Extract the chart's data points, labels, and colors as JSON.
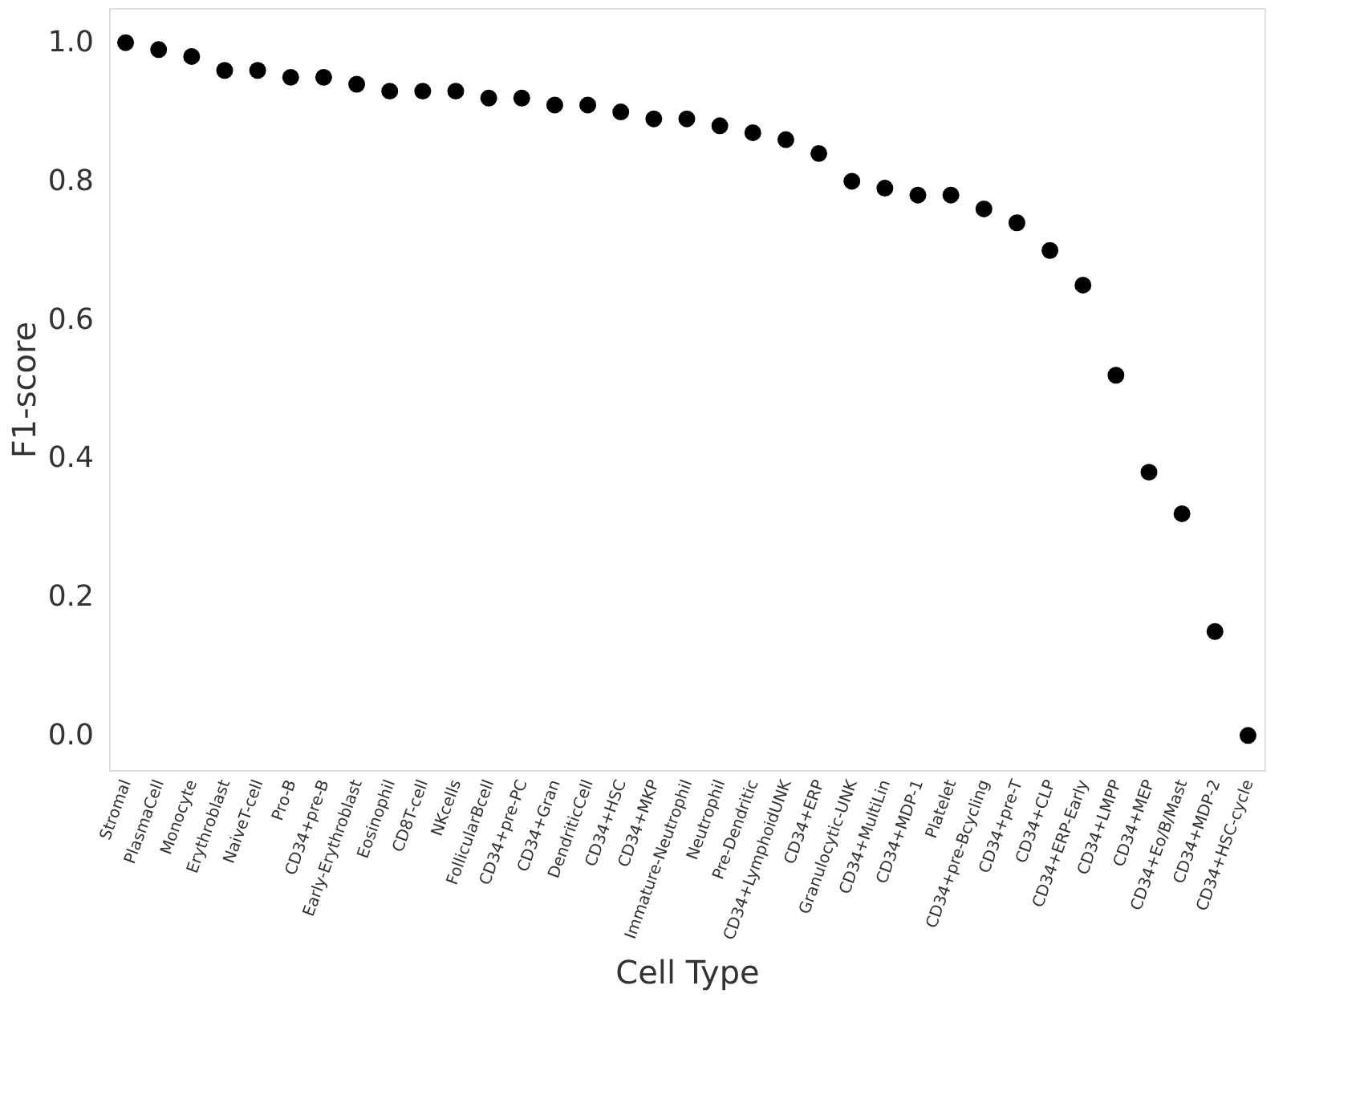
{
  "chart_data": {
    "type": "scatter",
    "xlabel": "Cell Type",
    "ylabel": "F1-score",
    "categories": [
      "Stromal",
      "PlasmaCell",
      "Monocyte",
      "Erythroblast",
      "NaiveT-cell",
      "Pro-B",
      "CD34+pre-B",
      "Early-Erythroblast",
      "Eosinophil",
      "CD8T-cell",
      "NKcells",
      "FollicularBcell",
      "CD34+pre-PC",
      "CD34+Gran",
      "DendriticCell",
      "CD34+HSC",
      "CD34+MKP",
      "Immature-Neutrophil",
      "Neutrophil",
      "Pre-Dendritic",
      "CD34+LymphoidUNK",
      "CD34+ERP",
      "Granulocytic-UNK",
      "CD34+MultiLin",
      "CD34+MDP-1",
      "Platelet",
      "CD34+pre-Bcycling",
      "CD34+pre-T",
      "CD34+CLP",
      "CD34+ERP-Early",
      "CD34+LMPP",
      "CD34+MEP",
      "CD34+Eo/B/Mast",
      "CD34+MDP-2",
      "CD34+HSC-cycle"
    ],
    "series": [
      {
        "color": "#000000",
        "values": [
          1.0,
          0.99,
          0.98,
          0.96,
          0.96,
          0.95,
          0.95,
          0.94,
          0.93,
          0.93,
          0.93,
          0.92,
          0.92,
          0.91,
          0.91,
          0.9,
          0.89,
          0.89,
          0.88,
          0.87,
          0.86,
          0.84,
          0.8,
          0.79,
          0.78,
          0.78,
          0.76,
          0.74,
          0.7,
          0.65,
          0.52,
          0.38,
          0.32,
          0.15,
          0.0
        ]
      }
    ],
    "ylim": [
      -0.05,
      1.05
    ],
    "yticks": [
      {
        "value": 0.0,
        "label": "0.0"
      },
      {
        "value": 0.2,
        "label": "0.2"
      },
      {
        "value": 0.4,
        "label": "0.4"
      },
      {
        "value": 0.6,
        "label": "0.6"
      },
      {
        "value": 0.8,
        "label": "0.8"
      },
      {
        "value": 1.0,
        "label": "1.0"
      }
    ],
    "grid": false,
    "marker": "circle"
  }
}
